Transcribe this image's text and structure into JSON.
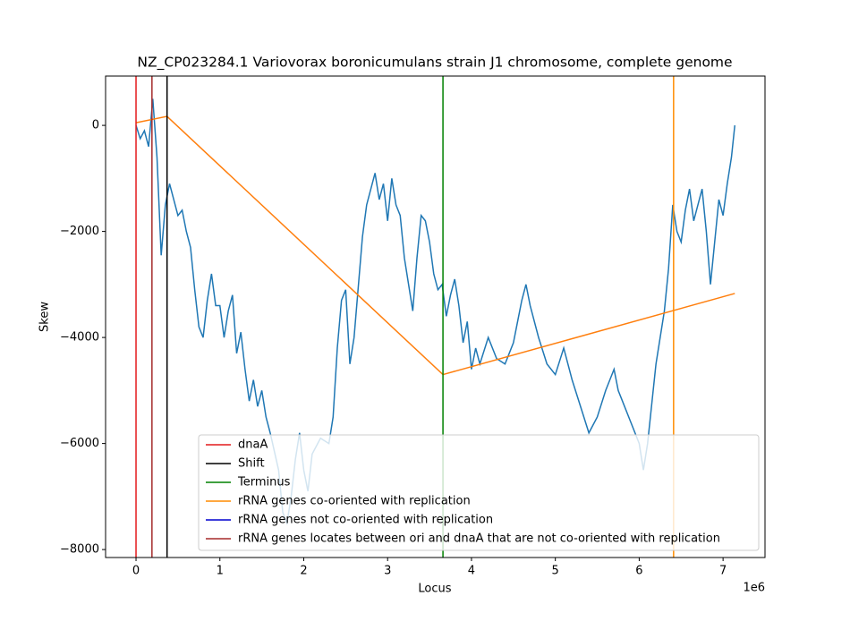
{
  "chart_data": {
    "type": "line",
    "title": "NZ_CP023284.1 Variovorax boronicumulans strain J1 chromosome, complete genome",
    "xlabel": "Locus",
    "ylabel": "Skew",
    "x_offset_label": "1e6",
    "xlim": [
      -363000,
      7500000
    ],
    "ylim": [
      -8150,
      930
    ],
    "xticks": [
      0,
      {
        "value": 1000000,
        "label": "1"
      },
      {
        "value": 2000000,
        "label": "2"
      },
      {
        "value": 3000000,
        "label": "3"
      },
      {
        "value": 4000000,
        "label": "4"
      },
      {
        "value": 5000000,
        "label": "5"
      },
      {
        "value": 6000000,
        "label": "6"
      },
      {
        "value": 7000000,
        "label": "7"
      }
    ],
    "yticks": [
      {
        "value": -8000,
        "label": "−8000"
      },
      {
        "value": -6000,
        "label": "−6000"
      },
      {
        "value": -4000,
        "label": "−4000"
      },
      {
        "value": -2000,
        "label": "−2000"
      },
      0
    ],
    "series": [
      {
        "color": "#1f77b4",
        "x": [
          0,
          50000,
          100000,
          150000,
          200000,
          250000,
          300000,
          350000,
          400000,
          450000,
          500000,
          550000,
          600000,
          650000,
          700000,
          750000,
          800000,
          850000,
          900000,
          950000,
          1000000,
          1050000,
          1100000,
          1150000,
          1200000,
          1250000,
          1300000,
          1350000,
          1400000,
          1450000,
          1500000,
          1550000,
          1600000,
          1700000,
          1750000,
          1800000,
          1850000,
          1900000,
          1950000,
          2000000,
          2050000,
          2100000,
          2200000,
          2300000,
          2350000,
          2400000,
          2450000,
          2500000,
          2550000,
          2600000,
          2700000,
          2750000,
          2800000,
          2850000,
          2900000,
          2950000,
          3000000,
          3050000,
          3100000,
          3150000,
          3200000,
          3250000,
          3300000,
          3350000,
          3400000,
          3450000,
          3500000,
          3550000,
          3600000,
          3650000,
          3700000,
          3750000,
          3800000,
          3850000,
          3900000,
          3950000,
          4000000,
          4050000,
          4100000,
          4200000,
          4300000,
          4400000,
          4500000,
          4550000,
          4600000,
          4650000,
          4700000,
          4800000,
          4900000,
          5000000,
          5100000,
          5200000,
          5300000,
          5400000,
          5500000,
          5600000,
          5700000,
          5750000,
          5800000,
          5900000,
          6000000,
          6050000,
          6100000,
          6200000,
          6300000,
          6350000,
          6400000,
          6450000,
          6500000,
          6550000,
          6600000,
          6650000,
          6700000,
          6750000,
          6800000,
          6850000,
          6900000,
          6950000,
          7000000,
          7050000,
          7100000,
          7140000
        ],
        "values": [
          0,
          -250,
          -100,
          -400,
          500,
          -600,
          -2450,
          -1500,
          -1100,
          -1400,
          -1700,
          -1600,
          -2000,
          -2300,
          -3100,
          -3800,
          -4000,
          -3300,
          -2800,
          -3400,
          -3400,
          -4000,
          -3500,
          -3200,
          -4300,
          -3900,
          -4600,
          -5200,
          -4800,
          -5300,
          -5000,
          -5500,
          -5800,
          -6500,
          -7300,
          -7500,
          -7000,
          -6300,
          -5800,
          -6500,
          -6900,
          -6200,
          -5900,
          -6000,
          -5500,
          -4200,
          -3300,
          -3100,
          -4500,
          -4000,
          -2100,
          -1500,
          -1200,
          -900,
          -1400,
          -1100,
          -1800,
          -1000,
          -1500,
          -1700,
          -2500,
          -3000,
          -3500,
          -2500,
          -1700,
          -1800,
          -2200,
          -2800,
          -3100,
          -3000,
          -3600,
          -3200,
          -2900,
          -3400,
          -4100,
          -3700,
          -4600,
          -4200,
          -4500,
          -4000,
          -4400,
          -4500,
          -4100,
          -3700,
          -3300,
          -3000,
          -3400,
          -4000,
          -4500,
          -4700,
          -4200,
          -4800,
          -5300,
          -5800,
          -5500,
          -5000,
          -4600,
          -5000,
          -5200,
          -5600,
          -6000,
          -6500,
          -6000,
          -4500,
          -3500,
          -2700,
          -1500,
          -2000,
          -2200,
          -1600,
          -1200,
          -1800,
          -1500,
          -1200,
          -2000,
          -3000,
          -2200,
          -1400,
          -1700,
          -1100,
          -600,
          0
        ]
      },
      {
        "color": "#ff7f0e",
        "x": [
          0,
          370000,
          3660000,
          7140000
        ],
        "values": [
          50,
          170,
          -4700,
          -3170
        ]
      }
    ],
    "vlines": [
      {
        "name": "dnaA",
        "color": "#e31a1c",
        "x": [
          0
        ]
      },
      {
        "name": "Shift",
        "color": "#000000",
        "x": [
          370000
        ]
      },
      {
        "name": "Terminus",
        "color": "#008000",
        "x": [
          3660000
        ]
      },
      {
        "name": "rRNA genes co-oriented with replication",
        "color": "#ff8c00",
        "x": [
          6410000
        ]
      },
      {
        "name": "rRNA genes not co-oriented with replication",
        "color": "#0000cd",
        "x": []
      },
      {
        "name": "rRNA genes locates between ori and dnaA that are not co-oriented with replication",
        "color": "#a52a2a",
        "x": [
          190000
        ]
      }
    ],
    "legend": "lower right"
  }
}
